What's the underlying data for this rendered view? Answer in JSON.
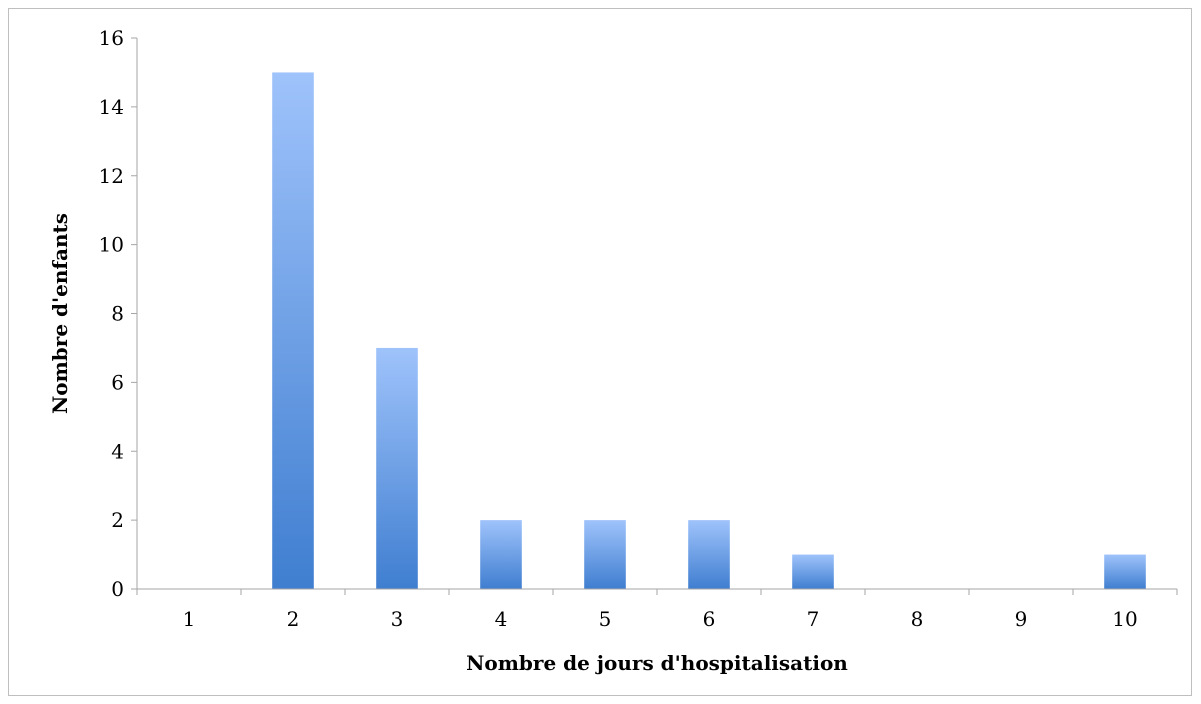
{
  "chart_data": {
    "type": "bar",
    "categories": [
      "1",
      "2",
      "3",
      "4",
      "5",
      "6",
      "7",
      "8",
      "9",
      "10"
    ],
    "values": [
      0,
      15,
      7,
      2,
      2,
      2,
      1,
      0,
      0,
      1
    ],
    "title": "",
    "xlabel": "Nombre de jours d'hospitalisation",
    "ylabel": "Nombre d'enfants",
    "ylim": [
      0,
      16
    ],
    "yticks": [
      "0",
      "2",
      "4",
      "6",
      "8",
      "10",
      "12",
      "14",
      "16"
    ],
    "grid": false,
    "legend": "none",
    "colors": {
      "bar_top": "#9fc3fb",
      "bar_bottom": "#3f7ed0",
      "axis": "#a6a6a6",
      "frame": "#bfbfbf"
    }
  }
}
